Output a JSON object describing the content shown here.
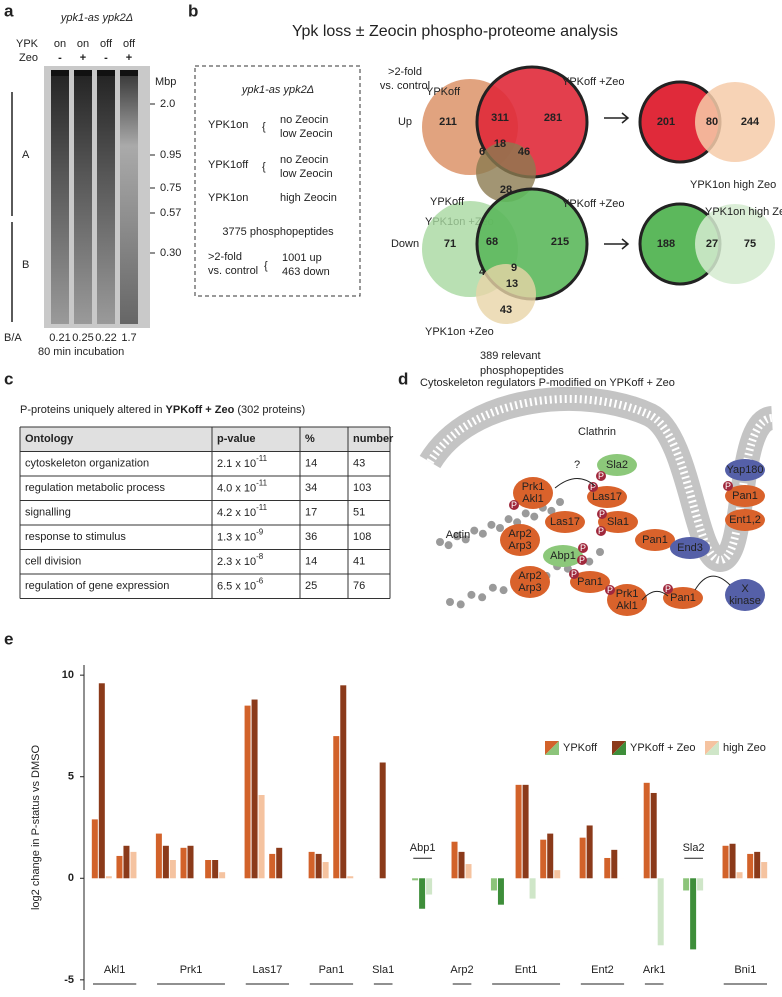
{
  "panel_a": {
    "letter": "a",
    "title": "ypk1-as ypk2Δ",
    "row_labels": [
      "YPK",
      "Zeo"
    ],
    "ypk": [
      "on",
      "on",
      "off",
      "off"
    ],
    "zeo": [
      "-",
      "+",
      "-",
      "+"
    ],
    "unit": "Mbp",
    "markers": [
      "2.0",
      "0.95",
      "0.75",
      "0.57",
      "0.30"
    ],
    "regions": [
      "A",
      "B"
    ],
    "ratio_label": "B/A",
    "ratios": [
      "0.21",
      "0.25",
      "0.22",
      "1.7"
    ],
    "note": "80 min incubation"
  },
  "panel_b": {
    "letter": "b",
    "title": "Ypk loss ± Zeocin phospho-proteome analysis",
    "box": {
      "title": "ypk1-as ypk2Δ",
      "conditions": [
        {
          "name": "YPK1on",
          "desc": [
            "no Zeocin",
            "low Zeocin"
          ]
        },
        {
          "name": "YPK1off",
          "desc": [
            "no Zeocin",
            "low Zeocin"
          ]
        },
        {
          "name": "YPK1on",
          "desc": [
            "high Zeocin"
          ]
        }
      ],
      "total": "3775 phosphopeptides",
      "threshold": [
        ">2-fold",
        "vs. control"
      ],
      "counts": [
        "1001 up",
        "463 down"
      ]
    },
    "threshold": [
      ">2-fold",
      "vs. control"
    ],
    "up": {
      "label": "Up",
      "sets": [
        "YPKoff",
        "YPKoff +Zeo",
        "YPK1on +Zeo"
      ],
      "regions": [
        211,
        311,
        281,
        18,
        6,
        46,
        28
      ],
      "compare": {
        "regions": [
          201,
          80,
          244
        ],
        "label": "YPK1on high Zeo"
      }
    },
    "down": {
      "label": "Down",
      "sets": [
        "YPKoff",
        "YPKoff +Zeo",
        "YPK1on +Zeo"
      ],
      "regions": [
        71,
        68,
        215,
        9,
        4,
        13,
        43
      ],
      "compare": {
        "regions": [
          188,
          27,
          75
        ],
        "label": "YPK1on high Zeo"
      },
      "note": [
        "389 relevant",
        "phosphopeptides"
      ]
    }
  },
  "panel_c": {
    "letter": "c",
    "title": [
      "P-proteins uniquely altered in ",
      "YPKoff + Zeo",
      "  (302 proteins)"
    ],
    "table": {
      "header": [
        "Ontology",
        "p-value",
        "%",
        "number"
      ],
      "rows": [
        [
          "cytoskeleton organization",
          {
            "mantissa": "2.1 x 10",
            "exp": "-11"
          },
          "14",
          "43"
        ],
        [
          "regulation metabolic process",
          {
            "mantissa": "4.0 x 10",
            "exp": "-11"
          },
          "34",
          "103"
        ],
        [
          "signalling",
          {
            "mantissa": "4.2 x 10",
            "exp": "-11"
          },
          "17",
          "51"
        ],
        [
          "response to stimulus",
          {
            "mantissa": "1.3 x 10",
            "exp": "-9"
          },
          "36",
          "108"
        ],
        [
          "cell division",
          {
            "mantissa": "2.3 x 10",
            "exp": "-8"
          },
          "14",
          "41"
        ],
        [
          "regulation of gene expression",
          {
            "mantissa": "6.5 x 10",
            "exp": "-6"
          },
          "25",
          "76"
        ]
      ]
    }
  },
  "panel_d": {
    "letter": "d",
    "title": "Cytoskeleton regulators P-modified on YPKoff + Zeo",
    "clathrin": "Clathrin",
    "actin": "Actin",
    "question": "?",
    "phospho": "P",
    "proteins": [
      [
        "Prk1",
        "Akl1"
      ],
      [
        "Las17"
      ],
      [
        "Sla2"
      ],
      [
        "Yap180"
      ],
      [
        "Pan1"
      ],
      [
        "Ent1,2"
      ],
      [
        "Sla1"
      ],
      [
        "Pan1"
      ],
      [
        "End3"
      ],
      [
        "Arp2",
        "Arp3"
      ],
      [
        "Las17"
      ],
      [
        "Abp1"
      ],
      [
        "Arp2",
        "Arp3"
      ],
      [
        "Pan1"
      ],
      [
        "Prk1",
        "Akl1"
      ],
      [
        "Pan1"
      ],
      [
        "X",
        "kinase"
      ]
    ]
  },
  "chart_data": {
    "type": "bar",
    "letter": "e",
    "ylabel": "log2 change in P-status vs DMSO",
    "categories": [
      null,
      null,
      null,
      null,
      null,
      null,
      null,
      null,
      null,
      null,
      null,
      null,
      null,
      null,
      null,
      null,
      null,
      null,
      null,
      null,
      null
    ],
    "groups": [
      {
        "label": "Akl1",
        "sites": 2
      },
      {
        "label": "Prk1",
        "sites": 3
      },
      {
        "label": "Las17",
        "sites": 2
      },
      {
        "label": "Pan1",
        "sites": 2
      },
      {
        "label": "Sla1",
        "sites": 1
      },
      {
        "label": "Abp1",
        "sites": 1,
        "label_position": "above"
      },
      {
        "label": "Arp2",
        "sites": 1
      },
      {
        "label": "Ent1",
        "sites": 3
      },
      {
        "label": "Ent2",
        "sites": 2
      },
      {
        "label": "Ark1",
        "sites": 1
      },
      {
        "label": "Sla2",
        "sites": 1,
        "label_position": "above"
      },
      {
        "label": "Bni1",
        "sites": 2
      }
    ],
    "series": [
      {
        "name": "YPKoff",
        "color": "#d2622a",
        "negative_color": "#8cc47a",
        "values": [
          2.9,
          1.1,
          2.2,
          1.5,
          0.9,
          8.5,
          1.2,
          1.3,
          7.0,
          0,
          -0.1,
          1.8,
          -0.6,
          4.6,
          1.9,
          2.0,
          1.0,
          4.7,
          -0.6,
          1.6,
          1.2
        ]
      },
      {
        "name": "YPKoff + Zeo",
        "color": "#8b3a1a",
        "negative_color": "#3e8e3a",
        "values": [
          9.6,
          1.6,
          1.6,
          1.6,
          0.9,
          8.8,
          1.5,
          1.2,
          9.5,
          5.7,
          -1.5,
          1.3,
          -1.3,
          4.6,
          2.2,
          2.6,
          1.4,
          4.2,
          -3.5,
          1.7,
          1.3
        ]
      },
      {
        "name": "high Zeo",
        "color": "#f5c3a0",
        "negative_color": "#cfe6c8",
        "values": [
          0.1,
          1.3,
          0.9,
          0,
          0.3,
          4.1,
          0,
          0.8,
          0.1,
          0,
          -0.8,
          0.7,
          0,
          -1.0,
          0.4,
          0,
          0,
          -3.3,
          -0.6,
          0.3,
          0.8
        ]
      }
    ],
    "ylim": [
      -5.5,
      10.5
    ],
    "yticks": [
      -5,
      0,
      5,
      10
    ],
    "legend": "upper right"
  }
}
